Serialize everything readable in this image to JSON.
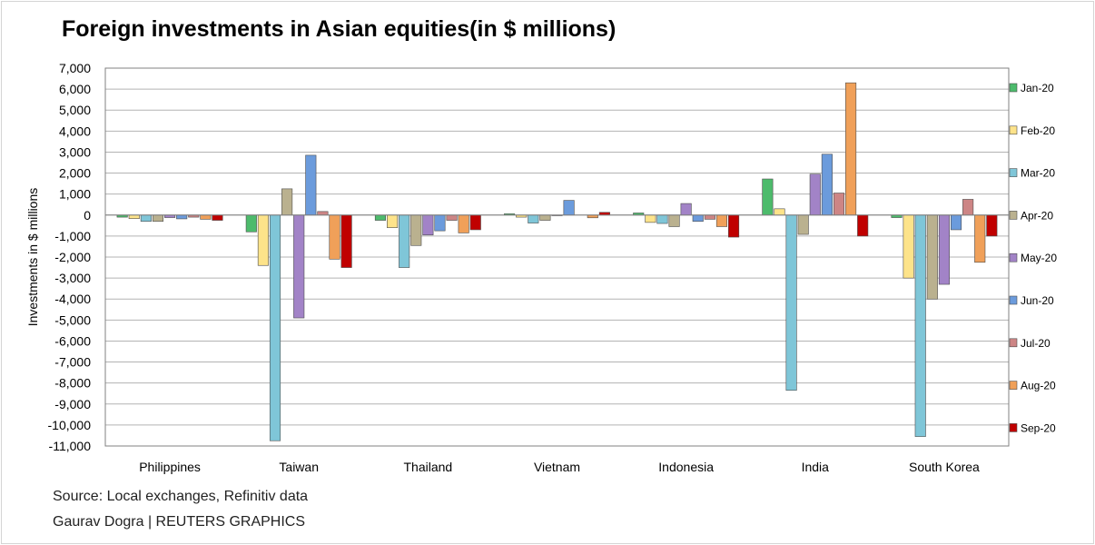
{
  "title": "Foreign investments in Asian equities(in $ millions)",
  "source": "Source: Local exchanges, Refinitiv data",
  "credit": "Gaurav Dogra | REUTERS GRAPHICS",
  "chart_data": {
    "type": "bar",
    "ylabel": "Investments in $ millions",
    "ylim": [
      -11000,
      7000
    ],
    "ytick_step": 1000,
    "grid": true,
    "legend_position": "right",
    "categories": [
      "Philippines",
      "Taiwan",
      "Thailand",
      "Vietnam",
      "Indonesia",
      "India",
      "South Korea"
    ],
    "series": [
      {
        "name": "Jan-20",
        "color": "#4dbb6c",
        "values": [
          -100,
          -800,
          -250,
          60,
          100,
          1720,
          -120
        ]
      },
      {
        "name": "Feb-20",
        "color": "#fde38a",
        "values": [
          -170,
          -2400,
          -600,
          -100,
          -350,
          300,
          -3000
        ]
      },
      {
        "name": "Mar-20",
        "color": "#7fc6d8",
        "values": [
          -300,
          -10750,
          -2500,
          -380,
          -400,
          -8350,
          -10550
        ]
      },
      {
        "name": "Apr-20",
        "color": "#bab18f",
        "values": [
          -300,
          1250,
          -1450,
          -250,
          -550,
          -920,
          -4000
        ]
      },
      {
        "name": "May-20",
        "color": "#a283c7",
        "values": [
          -120,
          -4900,
          -950,
          -30,
          550,
          1950,
          -3300
        ]
      },
      {
        "name": "Jun-20",
        "color": "#6b9bdc",
        "values": [
          -180,
          2850,
          -750,
          700,
          -300,
          2900,
          -700
        ]
      },
      {
        "name": "Jul-20",
        "color": "#cd8585",
        "values": [
          -100,
          170,
          -250,
          0,
          -200,
          1050,
          750
        ]
      },
      {
        "name": "Aug-20",
        "color": "#f0a059",
        "values": [
          -200,
          -2100,
          -850,
          -130,
          -550,
          6300,
          -2250
        ]
      },
      {
        "name": "Sep-20",
        "color": "#c00000",
        "values": [
          -250,
          -2500,
          -700,
          130,
          -1050,
          -1000,
          -1000
        ]
      }
    ]
  }
}
